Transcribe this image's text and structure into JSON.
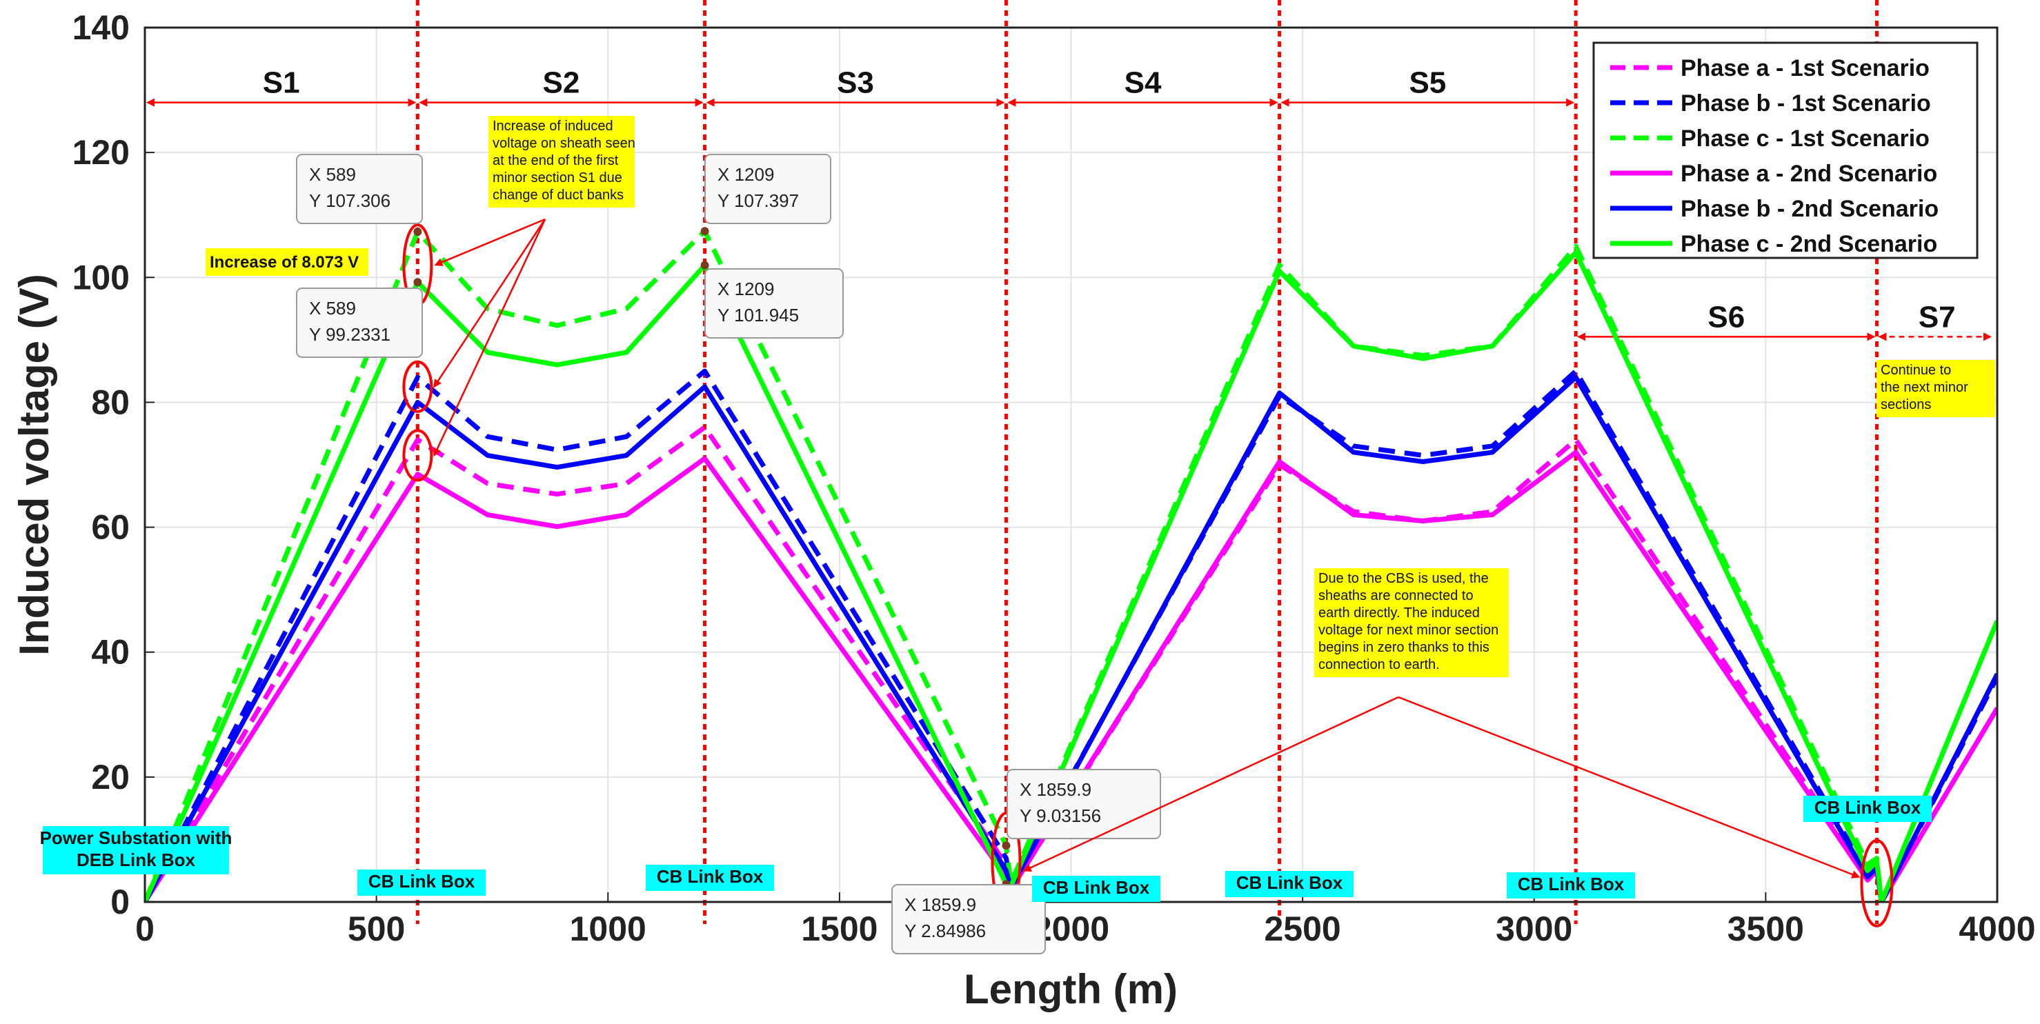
{
  "chart_data": {
    "type": "line",
    "xlabel": "Length (m)",
    "ylabel": "Induced voltage (V)",
    "xlim": [
      0,
      4000
    ],
    "ylim": [
      0,
      140
    ],
    "xticks": [
      0,
      500,
      1000,
      1500,
      2000,
      2500,
      3000,
      3500,
      4000
    ],
    "yticks": [
      0,
      20,
      40,
      60,
      80,
      100,
      120,
      140
    ],
    "grid": true,
    "legend_position": "top-right",
    "section_boundaries": [
      589,
      1209,
      1859.9,
      2450,
      3090,
      3740
    ],
    "sections": [
      {
        "label": "S1",
        "from": 0,
        "to": 589
      },
      {
        "label": "S2",
        "from": 589,
        "to": 1209
      },
      {
        "label": "S3",
        "from": 1209,
        "to": 1859.9
      },
      {
        "label": "S4",
        "from": 1859.9,
        "to": 2450
      },
      {
        "label": "S5",
        "from": 2450,
        "to": 3090
      },
      {
        "label": "S6",
        "from": 3090,
        "to": 3740
      },
      {
        "label": "S7",
        "from": 3740,
        "to": 4000
      }
    ],
    "series": [
      {
        "name": "Phase a - 1st Scenario",
        "color": "#ff00ff",
        "dash": true,
        "points": [
          [
            0,
            0
          ],
          [
            589,
            74
          ],
          [
            740,
            67
          ],
          [
            890,
            65.3
          ],
          [
            1040,
            67
          ],
          [
            1209,
            76
          ],
          [
            1859.9,
            6
          ],
          [
            1870,
            2
          ],
          [
            2450,
            70
          ],
          [
            2610,
            62.5
          ],
          [
            2760,
            61
          ],
          [
            2910,
            62.5
          ],
          [
            3090,
            74
          ],
          [
            3720,
            4
          ],
          [
            3740,
            5.5
          ],
          [
            3750,
            0
          ],
          [
            4000,
            31
          ]
        ]
      },
      {
        "name": "Phase b - 1st Scenario",
        "color": "#0000ff",
        "dash": true,
        "points": [
          [
            0,
            0
          ],
          [
            589,
            84
          ],
          [
            740,
            74.5
          ],
          [
            890,
            72.4
          ],
          [
            1040,
            74.5
          ],
          [
            1209,
            85
          ],
          [
            1859.9,
            7
          ],
          [
            1870,
            2.5
          ],
          [
            2450,
            81
          ],
          [
            2610,
            73
          ],
          [
            2760,
            71.5
          ],
          [
            2910,
            73
          ],
          [
            3090,
            85
          ],
          [
            3720,
            4.5
          ],
          [
            3740,
            6
          ],
          [
            3750,
            0
          ],
          [
            4000,
            36
          ]
        ]
      },
      {
        "name": "Phase c - 1st Scenario",
        "color": "#00ff00",
        "dash": true,
        "points": [
          [
            0,
            0
          ],
          [
            589,
            107.306
          ],
          [
            740,
            95
          ],
          [
            890,
            92.3
          ],
          [
            1040,
            95
          ],
          [
            1209,
            107.397
          ],
          [
            1859.9,
            9.03156
          ],
          [
            1870,
            3
          ],
          [
            2450,
            102
          ],
          [
            2610,
            89
          ],
          [
            2760,
            87.5
          ],
          [
            2910,
            89
          ],
          [
            3090,
            105
          ],
          [
            3720,
            6
          ],
          [
            3740,
            7
          ],
          [
            3750,
            0
          ],
          [
            4000,
            45
          ]
        ]
      },
      {
        "name": "Phase a - 2nd Scenario",
        "color": "#ff00ff",
        "dash": false,
        "points": [
          [
            0,
            0
          ],
          [
            589,
            68.5
          ],
          [
            740,
            62
          ],
          [
            890,
            60.1
          ],
          [
            1040,
            62
          ],
          [
            1209,
            71
          ],
          [
            1859.9,
            4
          ],
          [
            1870,
            2
          ],
          [
            2450,
            70.5
          ],
          [
            2610,
            62
          ],
          [
            2760,
            61
          ],
          [
            2910,
            62
          ],
          [
            3090,
            72
          ],
          [
            3720,
            3.5
          ],
          [
            3740,
            5
          ],
          [
            3750,
            0
          ],
          [
            4000,
            31
          ]
        ]
      },
      {
        "name": "Phase b - 2nd Scenario",
        "color": "#0000ff",
        "dash": false,
        "points": [
          [
            0,
            0
          ],
          [
            589,
            80
          ],
          [
            740,
            71.5
          ],
          [
            890,
            69.6
          ],
          [
            1040,
            71.5
          ],
          [
            1209,
            82.5
          ],
          [
            1859.9,
            5
          ],
          [
            1870,
            2.2
          ],
          [
            2450,
            81.5
          ],
          [
            2610,
            72
          ],
          [
            2760,
            70.5
          ],
          [
            2910,
            72
          ],
          [
            3090,
            84
          ],
          [
            3720,
            4
          ],
          [
            3740,
            5.5
          ],
          [
            3750,
            0
          ],
          [
            4000,
            36.5
          ]
        ]
      },
      {
        "name": "Phase c - 2nd Scenario",
        "color": "#00ff00",
        "dash": false,
        "points": [
          [
            0,
            0
          ],
          [
            589,
            99.2331
          ],
          [
            740,
            88
          ],
          [
            890,
            86
          ],
          [
            1040,
            88
          ],
          [
            1209,
            101.945
          ],
          [
            1859.9,
            2.84986
          ],
          [
            1870,
            2.5
          ],
          [
            2450,
            101
          ],
          [
            2610,
            89
          ],
          [
            2760,
            87
          ],
          [
            2910,
            89
          ],
          [
            3090,
            104
          ],
          [
            3720,
            5
          ],
          [
            3740,
            6.5
          ],
          [
            3750,
            0
          ],
          [
            4000,
            45
          ]
        ]
      }
    ],
    "datatips": [
      {
        "lines": [
          "X 589",
          "Y 107.306"
        ]
      },
      {
        "lines": [
          "X 589",
          "Y 99.2331"
        ]
      },
      {
        "lines": [
          "X 1209",
          "Y 107.397"
        ]
      },
      {
        "lines": [
          "X 1209",
          "Y 101.945"
        ]
      },
      {
        "lines": [
          "X 1859.9",
          "Y 9.03156"
        ]
      },
      {
        "lines": [
          "X 1859.9",
          "Y 2.84986"
        ]
      }
    ],
    "link_boxes": [
      {
        "lines": [
          "Power Substation with",
          "DEB Link Box"
        ]
      },
      {
        "lines": [
          "CB Link Box"
        ]
      },
      {
        "lines": [
          "CB Link Box"
        ]
      },
      {
        "lines": [
          "CB Link Box"
        ]
      },
      {
        "lines": [
          "CB Link Box"
        ]
      },
      {
        "lines": [
          "CB Link Box"
        ]
      },
      {
        "lines": [
          "CB Link Box"
        ]
      }
    ],
    "annotations": {
      "increase_label": "Increase of 8.073 V",
      "increase_note": [
        "Increase of induced",
        "voltage on sheath seen",
        "at the end of the first",
        "minor section S1 due",
        "change of duct banks"
      ],
      "cbs_note": [
        "Due to the CBS is used, the",
        "sheaths are connected to",
        "earth directly. The induced",
        "voltage for next minor section",
        "begins in zero thanks to this",
        "connection to earth."
      ],
      "continue_note": [
        "Continue to",
        "the next minor",
        "sections"
      ]
    }
  }
}
